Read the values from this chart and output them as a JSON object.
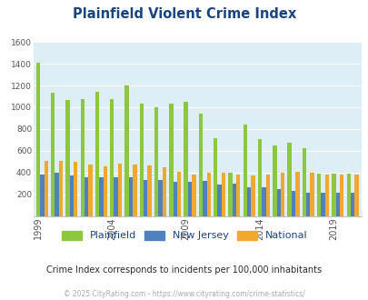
{
  "title": "Plainfield Violent Crime Index",
  "subtitle": "Crime Index corresponds to incidents per 100,000 inhabitants",
  "footer": "© 2025 CityRating.com - https://www.cityrating.com/crime-statistics/",
  "years": [
    1999,
    2000,
    2001,
    2002,
    2003,
    2004,
    2005,
    2006,
    2007,
    2008,
    2009,
    2010,
    2011,
    2012,
    2013,
    2014,
    2015,
    2016,
    2017,
    2018,
    2019,
    2020
  ],
  "plainfield": [
    1410,
    1130,
    1065,
    1075,
    1145,
    1075,
    1200,
    1035,
    1000,
    1035,
    1050,
    945,
    715,
    400,
    845,
    710,
    645,
    670,
    625,
    390,
    390,
    390
  ],
  "new_jersey": [
    380,
    400,
    375,
    360,
    360,
    355,
    355,
    335,
    330,
    315,
    315,
    320,
    290,
    295,
    265,
    265,
    250,
    230,
    210,
    215,
    215,
    215
  ],
  "national": [
    505,
    505,
    500,
    475,
    460,
    480,
    475,
    465,
    445,
    405,
    385,
    395,
    400,
    380,
    375,
    380,
    395,
    405,
    400,
    385,
    385,
    385
  ],
  "plainfield_color": "#8dc63f",
  "nj_color": "#4f81bd",
  "national_color": "#f0a830",
  "bg_color": "#ddeef6",
  "title_color": "#1a4480",
  "subtitle_color": "#2a2a2a",
  "footer_color": "#aaaaaa",
  "ylim": [
    0,
    1600
  ],
  "yticks": [
    0,
    200,
    400,
    600,
    800,
    1000,
    1200,
    1400,
    1600
  ],
  "xtick_years": [
    1999,
    2004,
    2009,
    2014,
    2019
  ],
  "legend_labels": [
    "Plainfield",
    "New Jersey",
    "National"
  ]
}
